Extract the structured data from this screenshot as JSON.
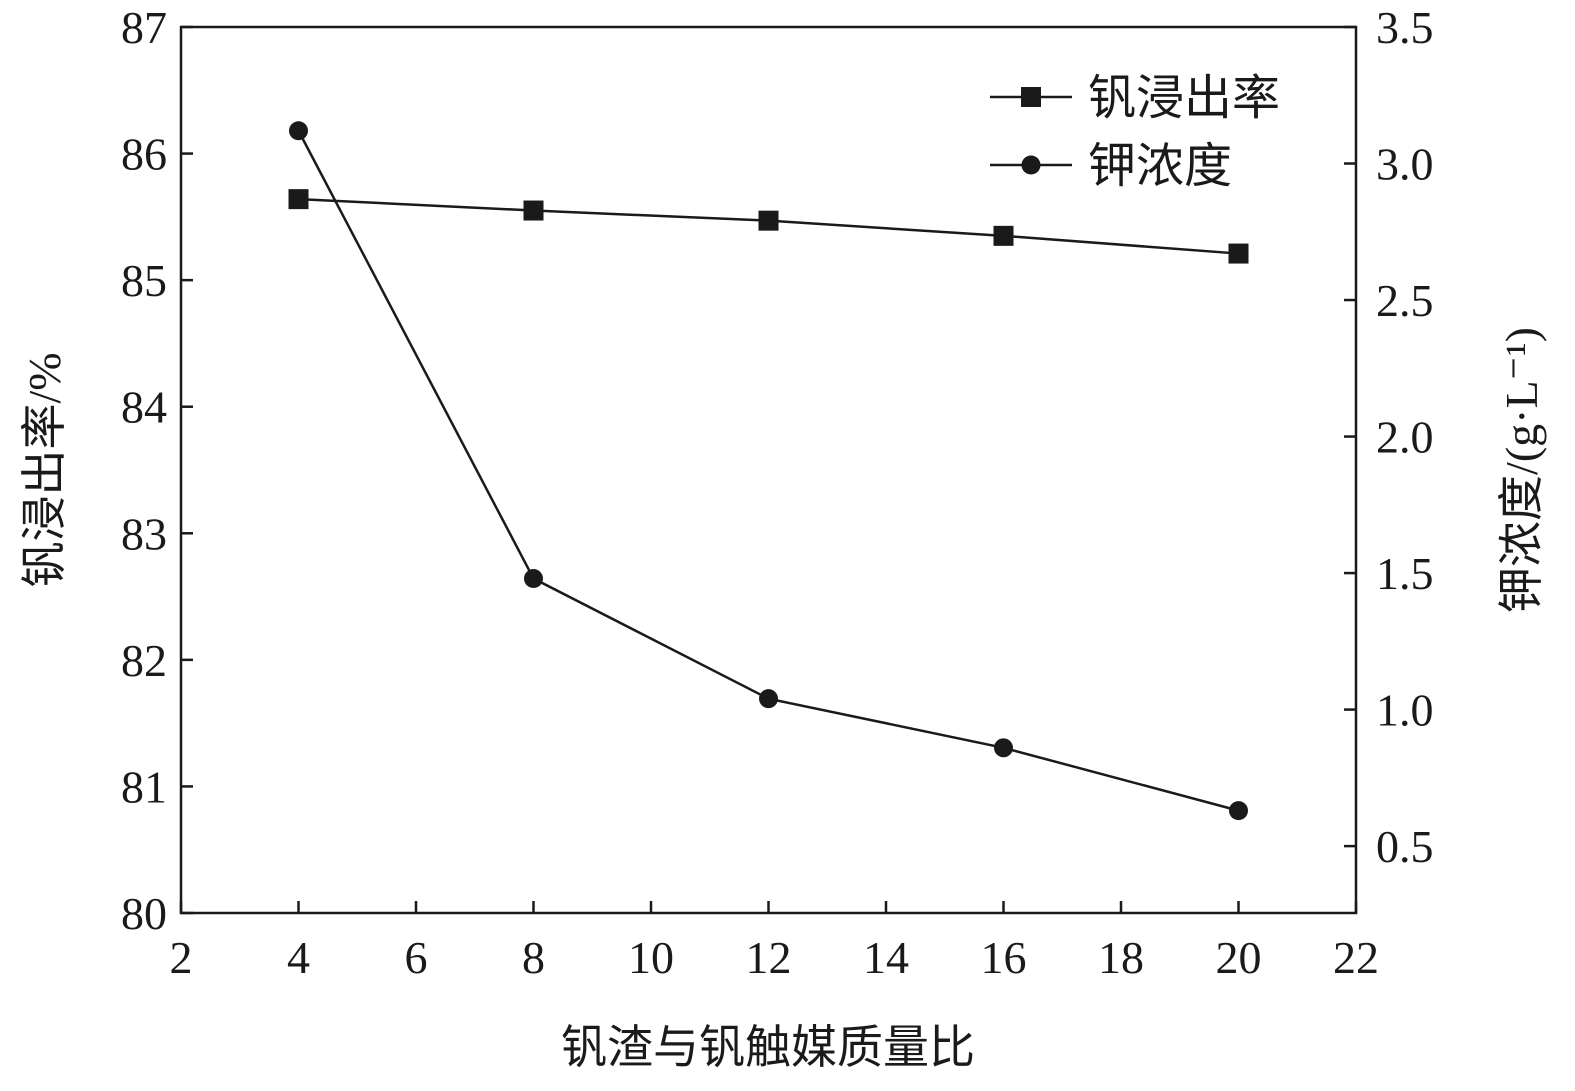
{
  "chart_data": {
    "type": "line",
    "xlabel": "钒渣与钒触媒质量比",
    "ylabel": "钒浸出率/%",
    "y2label": "钾浓度/(g·L⁻¹)",
    "xlim": [
      2,
      22
    ],
    "ylim": [
      80,
      87
    ],
    "y2lim": [
      0.255,
      3.5
    ],
    "xticks": [
      2,
      4,
      6,
      8,
      10,
      12,
      14,
      16,
      18,
      20,
      22
    ],
    "yticks": [
      80,
      81,
      82,
      83,
      84,
      85,
      86,
      87
    ],
    "y2ticks": [
      "0.5",
      "1.0",
      "1.5",
      "2.0",
      "2.5",
      "3.0",
      "3.5"
    ],
    "grid": false,
    "legend_position": "top-right",
    "x": [
      4,
      8,
      12,
      16,
      20
    ],
    "series": [
      {
        "name": "钒浸出率",
        "axis": "left",
        "marker": "square",
        "values": [
          85.64,
          85.55,
          85.47,
          85.35,
          85.21
        ]
      },
      {
        "name": "钾浓度",
        "axis": "right",
        "marker": "circle",
        "values": [
          3.12,
          1.48,
          1.04,
          0.86,
          0.63
        ]
      }
    ],
    "colors": {
      "line": "#1a1a1a"
    }
  }
}
